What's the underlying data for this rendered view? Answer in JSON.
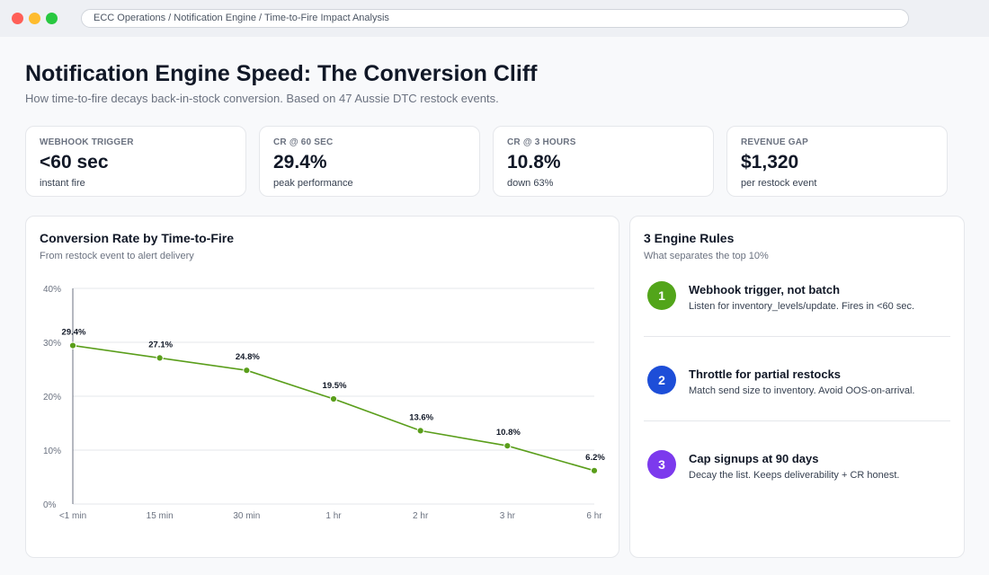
{
  "window": {
    "breadcrumb": "ECC Operations / Notification Engine / Time-to-Fire Impact Analysis"
  },
  "header": {
    "title": "Notification Engine Speed: The Conversion Cliff",
    "subtitle": "How time-to-fire decays back-in-stock conversion. Based on 47 Aussie DTC restock events."
  },
  "kpis": [
    {
      "label": "WEBHOOK TRIGGER",
      "value": "<60 sec",
      "note": "instant fire"
    },
    {
      "label": "CR @ 60 SEC",
      "value": "29.4%",
      "note": "peak performance"
    },
    {
      "label": "CR @ 3 HOURS",
      "value": "10.8%",
      "note": "down 63%"
    },
    {
      "label": "REVENUE GAP",
      "value": "$1,320",
      "note": "per restock event"
    }
  ],
  "chart_card": {
    "title": "Conversion Rate by Time-to-Fire",
    "subtitle": "From restock event to alert delivery"
  },
  "chart_data": {
    "type": "line",
    "categories": [
      "<1 min",
      "15 min",
      "30 min",
      "1 hr",
      "2 hr",
      "3 hr",
      "6 hr"
    ],
    "values": [
      29.4,
      27.1,
      24.8,
      19.5,
      13.6,
      10.8,
      6.2
    ],
    "data_labels": [
      "29.4%",
      "27.1%",
      "24.8%",
      "19.5%",
      "13.6%",
      "10.8%",
      "6.2%"
    ],
    "y_ticks": [
      0,
      10,
      20,
      30,
      40
    ],
    "y_tick_labels": [
      "0%",
      "10%",
      "20%",
      "30%",
      "40%"
    ],
    "ylim": [
      0,
      40
    ],
    "grid": true,
    "line_color": "#5a9e1b"
  },
  "rules_card": {
    "title": "3 Engine Rules",
    "subtitle": "What separates the top 10%",
    "rules": [
      {
        "number": "1",
        "title": "Webhook trigger, not batch",
        "desc": "Listen for inventory_levels/update. Fires in <60 sec.",
        "color": "#52a51a"
      },
      {
        "number": "2",
        "title": "Throttle for partial restocks",
        "desc": "Match send size to inventory. Avoid OOS-on-arrival.",
        "color": "#1d4ed8"
      },
      {
        "number": "3",
        "title": "Cap signups at 90 days",
        "desc": "Decay the list. Keeps deliverability + CR honest.",
        "color": "#7c3aed"
      }
    ]
  }
}
